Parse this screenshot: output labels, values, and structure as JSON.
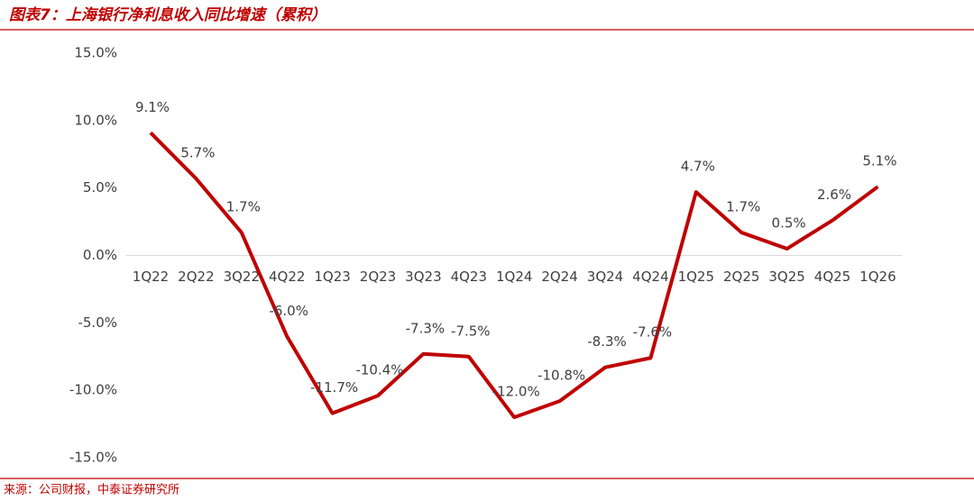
{
  "chart_data": {
    "type": "line",
    "title": "图表7：上海银行净利息收入同比增速（累积）",
    "source": "来源：公司财报，中泰证券研究所",
    "categories": [
      "1Q22",
      "2Q22",
      "3Q22",
      "4Q22",
      "1Q23",
      "2Q23",
      "3Q23",
      "4Q23",
      "1Q24",
      "2Q24",
      "3Q24",
      "4Q24",
      "1Q25",
      "2Q25",
      "3Q25",
      "4Q25",
      "1Q26"
    ],
    "values": [
      9.1,
      5.7,
      1.7,
      -6.0,
      -11.7,
      -10.4,
      -7.3,
      -7.5,
      -12.0,
      -10.8,
      -8.3,
      -7.6,
      4.7,
      1.7,
      0.5,
      2.6,
      5.1
    ],
    "value_labels": [
      "9.1%",
      "5.7%",
      "1.7%",
      "-6.0%",
      "-11.7%",
      "-10.4%",
      "-7.3%",
      "-7.5%",
      "-12.0%",
      "-10.8%",
      "-8.3%",
      "-7.6%",
      "4.7%",
      "1.7%",
      "0.5%",
      "2.6%",
      "5.1%"
    ],
    "color": "#c00000",
    "ylim": [
      -15,
      15
    ],
    "yticks": [
      {
        "value": -15,
        "label": "-15.0%"
      },
      {
        "value": -10,
        "label": "-10.0%"
      },
      {
        "value": -5,
        "label": "-5.0%"
      },
      {
        "value": 0,
        "label": "0.0%"
      },
      {
        "value": 5,
        "label": "5.0%"
      },
      {
        "value": 10,
        "label": "10.0%"
      },
      {
        "value": 15,
        "label": "15.0%"
      }
    ],
    "grid": false
  }
}
